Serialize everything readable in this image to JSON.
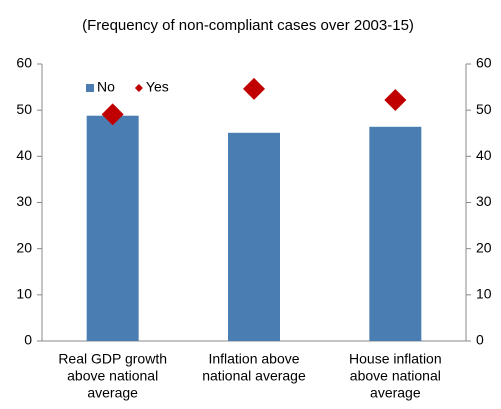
{
  "chart_data": {
    "type": "bar",
    "title": "(Frequency of non-compliant  cases over 2003-15)",
    "categories": [
      [
        "Real GDP growth",
        "above national",
        "average"
      ],
      [
        "Inflation above",
        "national average"
      ],
      [
        "House inflation",
        "above national",
        "average"
      ]
    ],
    "series": [
      {
        "name": "No",
        "type": "bar",
        "color": "#4a7eb3",
        "values": [
          48.8,
          45.1,
          46.4
        ]
      },
      {
        "name": "Yes",
        "type": "scatter",
        "marker": "diamond",
        "axis": "y2",
        "color": "#c00000",
        "values": [
          49.1,
          54.6,
          52.2
        ]
      }
    ],
    "ylim": [
      0,
      60
    ],
    "yticks": [
      0,
      10,
      20,
      30,
      40,
      50,
      60
    ],
    "y2lim": [
      0,
      60
    ],
    "y2ticks": [
      0,
      10,
      20,
      30,
      40,
      50,
      60
    ],
    "legend": "top-left"
  }
}
